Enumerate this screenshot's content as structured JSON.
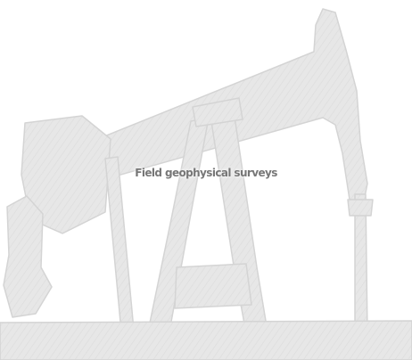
{
  "tile": {
    "caption": "Field geophysical surveys",
    "caption_color": "#777777",
    "silhouette_color": "#e6e6e6",
    "silhouette_edge_color": "#d4d4d4",
    "background_color": "#ffffff",
    "icon": "oil-pumpjack-icon"
  }
}
